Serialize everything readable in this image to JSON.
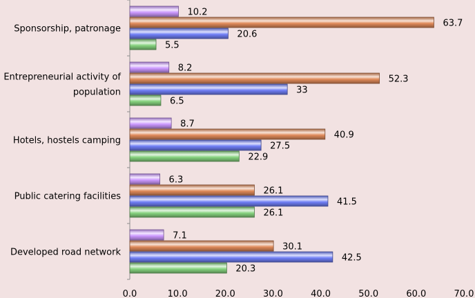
{
  "chart_data": {
    "type": "bar",
    "orientation": "horizontal",
    "categories": [
      {
        "lines": [
          "Sponsorship, patronage"
        ]
      },
      {
        "lines": [
          "Entrepreneurial activity of",
          "population"
        ]
      },
      {
        "lines": [
          "Hotels, hostels  camping"
        ]
      },
      {
        "lines": [
          "Public catering facilities"
        ]
      },
      {
        "lines": [
          "Developed road network"
        ]
      }
    ],
    "series": [
      {
        "name": "series-violet",
        "color": "#cc99ff",
        "values": [
          10.2,
          8.2,
          8.7,
          6.3,
          7.1
        ],
        "labels": [
          "10.2",
          "8.2",
          "8.7",
          "6.3",
          "7.1"
        ]
      },
      {
        "name": "series-orange",
        "color": "#e08a5a",
        "values": [
          63.7,
          52.3,
          40.9,
          26.1,
          30.1
        ],
        "labels": [
          "63.7",
          "52.3",
          "40.9",
          "26.1",
          "30.1"
        ]
      },
      {
        "name": "series-blue",
        "color": "#6f7ef5",
        "values": [
          20.6,
          33,
          27.5,
          41.5,
          42.5
        ],
        "labels": [
          "20.6",
          "33",
          "27.5",
          "41.5",
          "42.5"
        ]
      },
      {
        "name": "series-green",
        "color": "#86d27e",
        "values": [
          5.5,
          6.5,
          22.9,
          26.1,
          20.3
        ],
        "labels": [
          "5.5",
          "6.5",
          "22.9",
          "26.1",
          "20.3"
        ]
      }
    ],
    "xlim": [
      0,
      70
    ],
    "xticks": [
      "0.0",
      "10.0",
      "20.0",
      "30.0",
      "40.0",
      "50.0",
      "60.0",
      "70.0"
    ],
    "grid": false,
    "title": "",
    "xlabel": "",
    "ylabel": ""
  }
}
